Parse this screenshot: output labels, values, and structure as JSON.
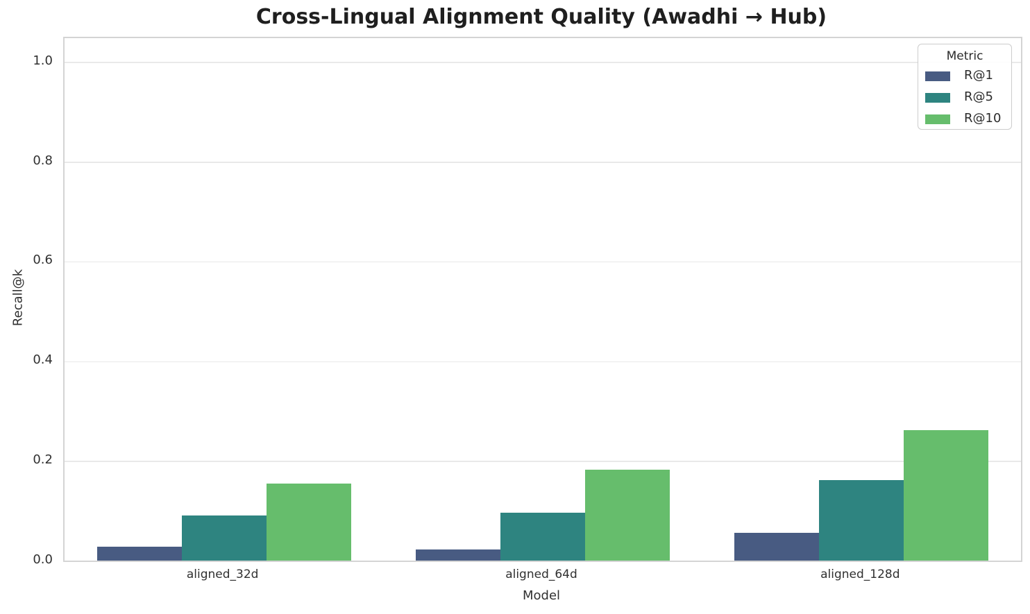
{
  "chart_data": {
    "type": "bar",
    "title": "Cross-Lingual Alignment Quality (Awadhi → Hub)",
    "xlabel": "Model",
    "ylabel": "Recall@k",
    "categories": [
      "aligned_32d",
      "aligned_64d",
      "aligned_128d"
    ],
    "series": [
      {
        "name": "R@1",
        "color": "#485b82",
        "values": [
          0.028,
          0.022,
          0.056
        ]
      },
      {
        "name": "R@5",
        "color": "#2e8480",
        "values": [
          0.09,
          0.096,
          0.161
        ]
      },
      {
        "name": "R@10",
        "color": "#66bd6c",
        "values": [
          0.154,
          0.183,
          0.261
        ]
      }
    ],
    "ylim": [
      0,
      1.048
    ],
    "yticks": [
      0.0,
      0.2,
      0.4,
      0.6,
      0.8,
      1.0
    ],
    "ytick_labels": [
      "0.0",
      "0.2",
      "0.4",
      "0.6",
      "0.8",
      "1.0"
    ],
    "grid": "horizontal-only",
    "legend": {
      "title": "Metric",
      "position": "upper-right",
      "entries": [
        "R@1",
        "R@5",
        "R@10"
      ]
    }
  },
  "colors": {
    "background": "#ffffff",
    "grid": "#e9e9e9",
    "spine": "#d4d4d4",
    "title_text": "#1f1f1f",
    "tick_text": "#303030"
  }
}
